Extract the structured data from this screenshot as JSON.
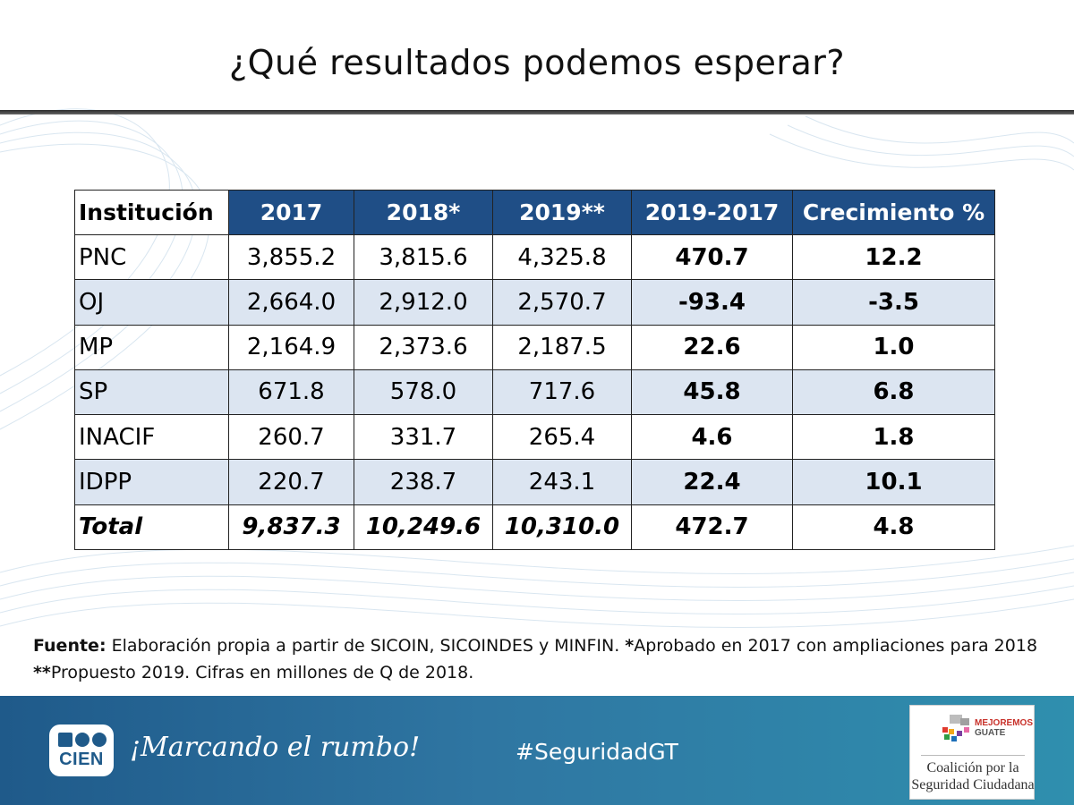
{
  "title": "¿Qué resultados podemos esperar?",
  "table": {
    "headers": [
      "Institución",
      "2017",
      "2018*",
      "2019**",
      "2019-2017",
      "Crecimiento %"
    ],
    "rows": [
      [
        "PNC",
        "3,855.2",
        "3,815.6",
        "4,325.8",
        "470.7",
        "12.2"
      ],
      [
        "OJ",
        "2,664.0",
        "2,912.0",
        "2,570.7",
        "-93.4",
        "-3.5"
      ],
      [
        "MP",
        "2,164.9",
        "2,373.6",
        "2,187.5",
        "22.6",
        "1.0"
      ],
      [
        "SP",
        "671.8",
        "578.0",
        "717.6",
        "45.8",
        "6.8"
      ],
      [
        "INACIF",
        "260.7",
        "331.7",
        "265.4",
        "4.6",
        "1.8"
      ],
      [
        "IDPP",
        "220.7",
        "238.7",
        "243.1",
        "22.4",
        "10.1"
      ]
    ],
    "total": [
      "Total",
      "9,837.3",
      "10,249.6",
      "10,310.0",
      "472.7",
      "4.8"
    ]
  },
  "source": {
    "label": "Fuente:",
    "text1": " Elaboración propia a partir de SICOIN, SICOINDES y MINFIN. ",
    "mark1": "*",
    "text2": "Aprobado en 2017 con ampliaciones para 2018   ",
    "mark2": "**",
    "text3": "Propuesto 2019. Cifras en millones de Q de 2018."
  },
  "footer": {
    "cien_logo": "CIEN",
    "slogan": "¡Marcando el rumbo!",
    "hashtag": "#SeguridadGT",
    "partner_brand_top": "MEJOREMOS",
    "partner_brand_bottom": "GUATE",
    "partner_name_line1": "Coalición por la",
    "partner_name_line2": "Seguridad Ciudadana"
  },
  "colors": {
    "header_blue": "#1f4e86",
    "row_alt": "#dce5f1",
    "footer_start": "#1f5a8a",
    "footer_end": "#2f8fae"
  }
}
